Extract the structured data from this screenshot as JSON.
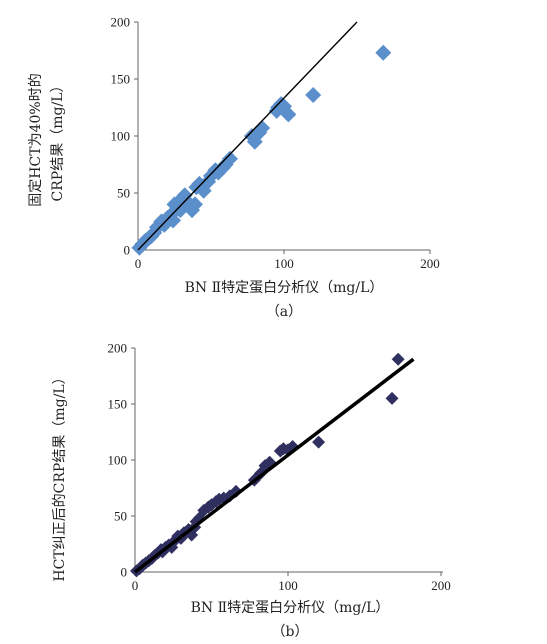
{
  "chart_data": [
    {
      "type": "scatter",
      "title": "",
      "subcaption": "（a）",
      "xlabel": "BN Ⅱ特定蛋白分析仪（mg/L）",
      "ylabel_lines": [
        "固定HCT为40%时的",
        "CRP结果（mg/L）"
      ],
      "xlim": [
        0,
        200
      ],
      "ylim": [
        0,
        200
      ],
      "xticks": [
        0,
        100,
        200
      ],
      "yticks": [
        0,
        50,
        100,
        150,
        200
      ],
      "marker": "diamond",
      "marker_color": "#5b8fcb",
      "line_color": "#000000",
      "grid": false,
      "legend": "none",
      "trendline": {
        "x": [
          0,
          150
        ],
        "y": [
          0,
          200
        ]
      },
      "points": [
        [
          1,
          2
        ],
        [
          3,
          5
        ],
        [
          5,
          8
        ],
        [
          7,
          10
        ],
        [
          9,
          12
        ],
        [
          11,
          15
        ],
        [
          13,
          20
        ],
        [
          15,
          22
        ],
        [
          16,
          25
        ],
        [
          18,
          22
        ],
        [
          20,
          28
        ],
        [
          22,
          30
        ],
        [
          24,
          26
        ],
        [
          25,
          40
        ],
        [
          27,
          37
        ],
        [
          29,
          35
        ],
        [
          30,
          45
        ],
        [
          32,
          48
        ],
        [
          34,
          42
        ],
        [
          35,
          38
        ],
        [
          37,
          35
        ],
        [
          39,
          40
        ],
        [
          40,
          55
        ],
        [
          42,
          58
        ],
        [
          45,
          52
        ],
        [
          48,
          60
        ],
        [
          50,
          65
        ],
        [
          53,
          70
        ],
        [
          55,
          68
        ],
        [
          58,
          72
        ],
        [
          60,
          75
        ],
        [
          63,
          80
        ],
        [
          78,
          100
        ],
        [
          80,
          95
        ],
        [
          83,
          103
        ],
        [
          85,
          107
        ],
        [
          95,
          122
        ],
        [
          96,
          125
        ],
        [
          98,
          128
        ],
        [
          100,
          126
        ],
        [
          103,
          119
        ],
        [
          120,
          136
        ],
        [
          168,
          173
        ]
      ]
    },
    {
      "type": "scatter",
      "title": "",
      "subcaption": "（b）",
      "xlabel": "BN Ⅱ特定蛋白分析仪（mg/L）",
      "ylabel_lines": [
        "HCT纠正后的CRP结果（mg/L）"
      ],
      "xlim": [
        0,
        200
      ],
      "ylim": [
        0,
        200
      ],
      "xticks": [
        0,
        100,
        200
      ],
      "yticks": [
        0,
        50,
        100,
        150,
        200
      ],
      "marker": "diamond",
      "marker_color": "#2f3060",
      "line_color": "#000000",
      "grid": false,
      "legend": "none",
      "trendline": {
        "x": [
          0,
          182
        ],
        "y": [
          0,
          190
        ]
      },
      "points": [
        [
          1,
          1
        ],
        [
          3,
          3
        ],
        [
          5,
          6
        ],
        [
          7,
          8
        ],
        [
          9,
          10
        ],
        [
          11,
          12
        ],
        [
          13,
          15
        ],
        [
          15,
          17
        ],
        [
          17,
          20
        ],
        [
          18,
          18
        ],
        [
          20,
          22
        ],
        [
          22,
          24
        ],
        [
          24,
          22
        ],
        [
          26,
          28
        ],
        [
          28,
          32
        ],
        [
          30,
          30
        ],
        [
          32,
          35
        ],
        [
          34,
          36
        ],
        [
          35,
          38
        ],
        [
          37,
          33
        ],
        [
          39,
          40
        ],
        [
          40,
          45
        ],
        [
          42,
          48
        ],
        [
          45,
          55
        ],
        [
          48,
          58
        ],
        [
          50,
          60
        ],
        [
          53,
          63
        ],
        [
          55,
          65
        ],
        [
          58,
          66
        ],
        [
          62,
          68
        ],
        [
          66,
          72
        ],
        [
          78,
          82
        ],
        [
          82,
          88
        ],
        [
          85,
          95
        ],
        [
          88,
          98
        ],
        [
          95,
          108
        ],
        [
          97,
          110
        ],
        [
          100,
          109
        ],
        [
          103,
          112
        ],
        [
          120,
          116
        ],
        [
          168,
          155
        ],
        [
          172,
          190
        ]
      ]
    }
  ]
}
